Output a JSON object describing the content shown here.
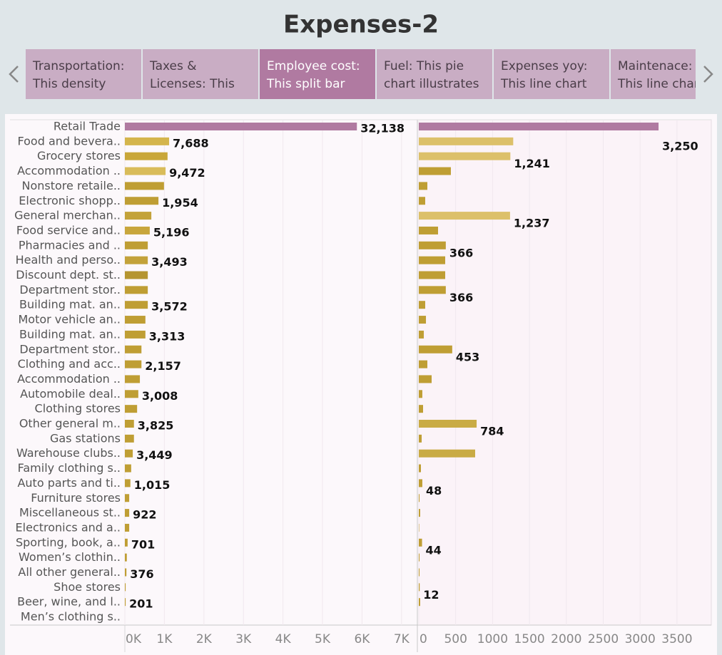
{
  "title": "Expenses-2",
  "nav": {
    "tabs": [
      [
        "Transportation:",
        "This density"
      ],
      [
        "Taxes &",
        "Licenses: This"
      ],
      [
        "Employee cost:",
        "This split bar"
      ],
      [
        "Fuel: This pie",
        "chart illustrates"
      ],
      [
        "Expenses yoy:",
        "This line chart"
      ],
      [
        "Maintenace:",
        "This line chart"
      ]
    ],
    "active": 2
  },
  "chart_data": {
    "type": "split-bar",
    "categories": [
      "Retail Trade",
      "Food and bevera..",
      "Grocery stores",
      "Accommodation ..",
      "Nonstore retaile..",
      "Electronic shopp..",
      "General merchan..",
      "Food service and..",
      "Pharmacies and ..",
      "Health and perso..",
      "Discount dept. st..",
      "Department stor..",
      "Building mat. an..",
      "Motor vehicle an..",
      "Building mat. an..",
      "Department stor..",
      "Clothing and acc..",
      "Accommodation ..",
      "Automobile deal..",
      "Clothing stores",
      "Other general m..",
      "Gas stations",
      "Warehouse clubs..",
      "Family clothing s..",
      "Auto parts and ti..",
      "Furniture stores",
      "Miscellaneous st..",
      "Electronics and a..",
      "Sporting, book, a..",
      "Women’s clothin..",
      "All other general..",
      "Shoe stores",
      "Beer, wine, and l..",
      "Men’s clothing s.."
    ],
    "series": [
      {
        "values": [
          5870,
          1120,
          1080,
          1030,
          990,
          850,
          670,
          630,
          580,
          580,
          580,
          580,
          580,
          520,
          520,
          420,
          420,
          380,
          340,
          310,
          230,
          230,
          200,
          160,
          140,
          110,
          110,
          110,
          70,
          50,
          40,
          20,
          20,
          0
        ],
        "colors": [
          "#b07aa1",
          "#d4b54c",
          "#c9a73a",
          "#d9bc5a",
          "#bf9e34",
          "#bf9e34",
          "#c3a23a",
          "#c8a63c",
          "#bf9e34",
          "#c3a23a",
          "#b59530",
          "#bf9e34",
          "#bf9e34",
          "#bf9e34",
          "#bf9e34",
          "#bf9e34",
          "#bf9e34",
          "#bf9e34",
          "#bf9e34",
          "#bf9e34",
          "#bf9e34",
          "#bf9e34",
          "#bf9e34",
          "#bf9e34",
          "#bf9e34",
          "#bf9e34",
          "#bf9e34",
          "#bf9e34",
          "#bf9e34",
          "#bf9e34",
          "#bf9e34",
          "#bf9e34",
          "#bf9e34",
          "#bf9e34"
        ],
        "label_values": [
          32138,
          7688,
          null,
          9472,
          null,
          1954,
          null,
          5196,
          null,
          3493,
          null,
          null,
          3572,
          null,
          3313,
          null,
          2157,
          null,
          3008,
          null,
          3825,
          null,
          3449,
          null,
          1015,
          null,
          922,
          null,
          701,
          null,
          376,
          null,
          201,
          null
        ],
        "value_labels": [
          "32,138",
          "7,688",
          null,
          "9,472",
          null,
          "1,954",
          null,
          "5,196",
          null,
          "3,493",
          null,
          null,
          "3,572",
          null,
          "3,313",
          null,
          "2,157",
          null,
          "3,008",
          null,
          "3,825",
          null,
          "3,449",
          null,
          "1,015",
          null,
          "922",
          null,
          "701",
          null,
          "376",
          null,
          "201",
          null
        ],
        "xlim": [
          0,
          7400
        ],
        "xticks": [
          {
            "value": 0,
            "label": "0K"
          },
          {
            "value": 1000,
            "label": "1K"
          },
          {
            "value": 2000,
            "label": "2K"
          },
          {
            "value": 3000,
            "label": "3K"
          },
          {
            "value": 4000,
            "label": "4K"
          },
          {
            "value": 5000,
            "label": "5K"
          },
          {
            "value": 6000,
            "label": "6K"
          },
          {
            "value": 7000,
            "label": "7K"
          }
        ]
      },
      {
        "values": [
          3250,
          1280,
          1241,
          435,
          116,
          87,
          1237,
          261,
          366,
          358,
          358,
          366,
          87,
          97,
          68,
          453,
          116,
          174,
          48,
          58,
          784,
          39,
          764,
          29,
          48,
          10,
          19,
          5,
          44,
          10,
          10,
          12,
          19,
          0
        ],
        "colors": [
          "#b07aa1",
          "#dcc06a",
          "#dcc06a",
          "#bf9e34",
          "#bf9e34",
          "#bf9e34",
          "#dcc06a",
          "#bf9e34",
          "#bf9e34",
          "#bf9e34",
          "#bf9e34",
          "#bf9e34",
          "#bf9e34",
          "#bf9e34",
          "#bf9e34",
          "#bf9e34",
          "#bf9e34",
          "#bf9e34",
          "#bf9e34",
          "#bf9e34",
          "#c9ab45",
          "#bf9e34",
          "#c9ab45",
          "#bf9e34",
          "#bf9e34",
          "#bf9e34",
          "#bf9e34",
          "#bf9e34",
          "#bf9e34",
          "#bf9e34",
          "#bf9e34",
          "#bf9e34",
          "#bf9e34",
          "#bf9e34"
        ],
        "label_values": [
          3250,
          null,
          1241,
          null,
          null,
          null,
          1237,
          null,
          366,
          null,
          null,
          366,
          null,
          null,
          null,
          453,
          null,
          null,
          null,
          null,
          784,
          null,
          null,
          null,
          48,
          null,
          null,
          null,
          44,
          null,
          null,
          12,
          null,
          null
        ],
        "value_labels": [
          "3,250",
          null,
          "1,241",
          null,
          null,
          null,
          "1,237",
          null,
          "366",
          null,
          null,
          "366",
          null,
          null,
          null,
          "453",
          null,
          null,
          null,
          null,
          "784",
          null,
          null,
          null,
          "48",
          null,
          null,
          null,
          "44",
          null,
          null,
          "12",
          null,
          null
        ],
        "xlim": [
          0,
          3965
        ],
        "xticks": [
          0,
          500,
          1000,
          1500,
          2000,
          2500,
          3000,
          3500
        ]
      }
    ]
  }
}
